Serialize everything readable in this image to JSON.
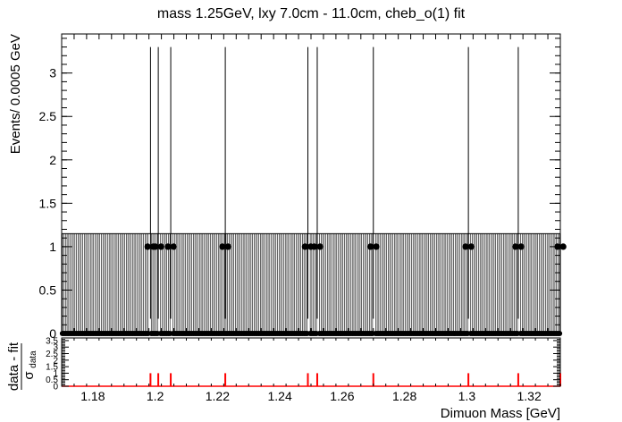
{
  "chart_data": {
    "type": "scatter",
    "title": "mass 1.25GeV, lxy 7.0cm - 11.0cm, cheb_o(1) fit",
    "xlabel": "Dimuon Mass [GeV]",
    "ylabel": "Events/ 0.0005 GeV",
    "xlim": [
      1.17,
      1.33
    ],
    "ylim": [
      0,
      3.45
    ],
    "x_ticks": [
      "1.18",
      "1.2",
      "1.22",
      "1.24",
      "1.26",
      "1.28",
      "1.3",
      "1.32"
    ],
    "y_ticks": [
      "0",
      "0.5",
      "1",
      "1.5",
      "2",
      "2.5",
      "3"
    ],
    "bin_width": 0.0005,
    "nonempty_bins": [
      {
        "x": 1.1985,
        "y": 1
      },
      {
        "x": 1.201,
        "y": 1
      },
      {
        "x": 1.205,
        "y": 1
      },
      {
        "x": 1.2225,
        "y": 1
      },
      {
        "x": 1.249,
        "y": 1
      },
      {
        "x": 1.252,
        "y": 1
      },
      {
        "x": 1.27,
        "y": 1
      },
      {
        "x": 1.3005,
        "y": 1
      },
      {
        "x": 1.3165,
        "y": 1
      },
      {
        "x": 1.33,
        "y": 1
      }
    ],
    "empty_bin_value": 0,
    "error_up_nonempty": 2.3,
    "error_up_empty": 1.15,
    "fit_value": 0.003,
    "ratio_panel": {
      "ylabel_numerator": "data - fit",
      "ylabel_denominator": "σ",
      "ylabel_denominator_sub": "data",
      "y_ticks": [
        "0",
        "0.5",
        "1",
        "1.5",
        "2",
        "2.5",
        "3",
        "3.5"
      ],
      "ylim": [
        0,
        3.7
      ],
      "pull_nonempty": 1.0
    },
    "grid": false,
    "legend": "none",
    "colors": {
      "data": "#000000",
      "fit": "#ff0000",
      "pull": "#ff0000"
    }
  }
}
